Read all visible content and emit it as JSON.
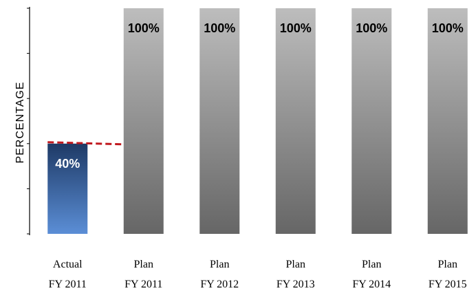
{
  "chart_data": {
    "type": "bar",
    "title": "",
    "xlabel": "",
    "ylabel": "PERCENTAGE",
    "ylim": [
      0,
      100
    ],
    "grid": false,
    "legend": "none",
    "categories": [
      [
        "Actual",
        "FY 2011"
      ],
      [
        "Plan",
        "FY 2011"
      ],
      [
        "Plan",
        "FY 2012"
      ],
      [
        "Plan",
        "FY 2013"
      ],
      [
        "Plan",
        "FY 2014"
      ],
      [
        "Plan",
        "FY 2015"
      ]
    ],
    "values": [
      40,
      100,
      100,
      100,
      100,
      100
    ],
    "data_labels": [
      "40%",
      "100%",
      "100%",
      "100%",
      "100%",
      "100%"
    ],
    "reference_line": {
      "value": 40,
      "style": "dashed",
      "color": "#C0181E"
    },
    "colors": {
      "actual_top": "#1E3A66",
      "actual_bottom": "#5B8ED6",
      "plan_top": "#BDBDBD",
      "plan_bottom": "#666666",
      "actual_label": "#FFFFFF",
      "plan_label": "#000000"
    }
  }
}
